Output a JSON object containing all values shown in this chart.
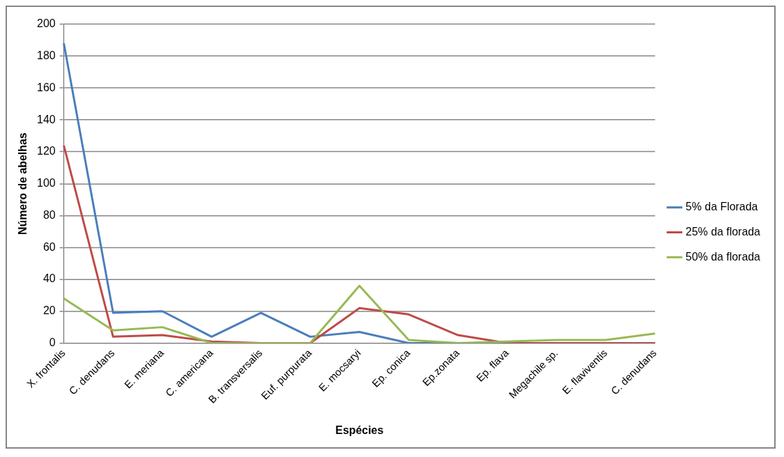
{
  "chart_data": {
    "type": "line",
    "xlabel": "Espécies",
    "ylabel": "Número de abelhas",
    "categories": [
      "X. frontalis",
      "C. denudans",
      "E. meriana",
      "C. americana",
      "B. transversalis",
      "Euf. purpurata",
      "E. mocsaryi",
      "Ep. conica",
      "Ep.zonata",
      "Ep. flava",
      "Megachile sp.",
      "E. flaviventis",
      "C. denudans"
    ],
    "series": [
      {
        "name": "5% da Florada",
        "color": "#4a7ebb",
        "values": [
          188,
          19,
          20,
          4,
          19,
          4,
          7,
          0,
          0,
          0,
          0,
          null,
          null
        ]
      },
      {
        "name": "25% da florada",
        "color": "#be4b48",
        "values": [
          124,
          4,
          5,
          1,
          0,
          0,
          22,
          18,
          5,
          0,
          0,
          0,
          0
        ]
      },
      {
        "name": "50% da florada",
        "color": "#98b954",
        "values": [
          28,
          8,
          10,
          0,
          0,
          0,
          36,
          2,
          0,
          1,
          2,
          2,
          6
        ]
      }
    ],
    "ylim": [
      0,
      200
    ],
    "yticks": [
      0,
      20,
      40,
      60,
      80,
      100,
      120,
      140,
      160,
      180,
      200
    ],
    "grid": "y",
    "legend": "right",
    "marker": "none",
    "line_style": "solid"
  }
}
